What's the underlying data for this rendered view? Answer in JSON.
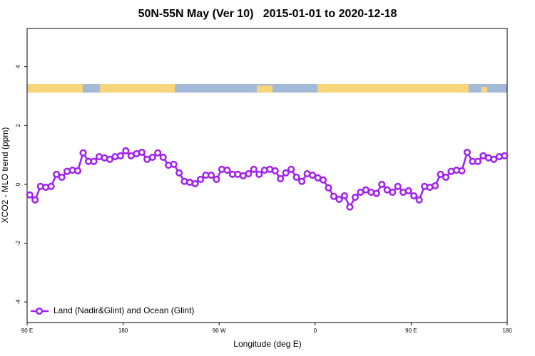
{
  "chart_data": {
    "type": "line",
    "title": "50N-55N May (Ver 10)   2015-01-01 to 2020-12-18",
    "x_label": "Longitude (deg E)",
    "y_label": "XCO2 - MLO trend (ppm)",
    "xlim": [
      90,
      540
    ],
    "ylim": [
      -4.7,
      5.3
    ],
    "xticks": [
      {
        "value": 90,
        "label": "90 E"
      },
      180,
      {
        "value": 270,
        "label": "90 W"
      },
      {
        "value": 360,
        "label": "0"
      },
      {
        "value": 450,
        "label": "90 E"
      },
      {
        "value": 540,
        "label": "180"
      }
    ],
    "yticks": [
      -4,
      -2,
      0,
      2,
      4
    ],
    "legend": "bottom-left",
    "x": [
      92.5,
      97.5,
      102.5,
      107.5,
      112.5,
      117.5,
      122.5,
      127.5,
      132.5,
      137.5,
      142.5,
      147.5,
      152.5,
      157.5,
      162.5,
      167.5,
      172.5,
      177.5,
      182.5,
      187.5,
      192.5,
      197.5,
      202.5,
      207.5,
      212.5,
      217.5,
      222.5,
      227.5,
      232.5,
      237.5,
      242.5,
      247.5,
      252.5,
      257.5,
      262.5,
      267.5,
      272.5,
      277.5,
      282.5,
      287.5,
      292.5,
      297.5,
      302.5,
      307.5,
      312.5,
      317.5,
      322.5,
      327.5,
      332.5,
      337.5,
      342.5,
      347.5,
      352.5,
      357.5,
      362.5,
      367.5,
      372.5,
      377.5,
      382.5,
      387.5,
      392.5,
      397.5,
      402.5,
      407.5,
      412.5,
      417.5,
      422.5,
      427.5,
      432.5,
      437.5,
      442.5,
      447.5,
      452.5,
      457.5,
      462.5,
      467.5,
      472.5,
      477.5,
      482.5,
      487.5,
      492.5,
      497.5,
      502.5,
      507.5,
      512.5,
      517.5,
      522.5,
      527.5,
      532.5,
      537.5
    ],
    "series": [
      {
        "name": "Land (Nadir&Glint) and Ocean (Glint)",
        "color": "#a020f0",
        "values": [
          -0.36,
          -0.53,
          -0.07,
          -0.1,
          -0.07,
          0.34,
          0.24,
          0.44,
          0.48,
          0.46,
          1.07,
          0.78,
          0.78,
          0.94,
          0.9,
          0.85,
          0.94,
          0.97,
          1.14,
          0.97,
          1.04,
          1.09,
          0.85,
          0.92,
          1.07,
          0.92,
          0.65,
          0.68,
          0.39,
          0.1,
          0.07,
          0.02,
          0.17,
          0.31,
          0.31,
          0.17,
          0.51,
          0.48,
          0.34,
          0.34,
          0.29,
          0.36,
          0.51,
          0.34,
          0.48,
          0.51,
          0.46,
          0.19,
          0.39,
          0.51,
          0.24,
          0.1,
          0.36,
          0.31,
          0.22,
          0.15,
          -0.12,
          -0.41,
          -0.51,
          -0.39,
          -0.77,
          -0.44,
          -0.27,
          -0.19,
          -0.27,
          -0.31,
          0.0,
          -0.19,
          -0.27,
          -0.07,
          -0.27,
          -0.22,
          -0.39,
          -0.53,
          -0.07,
          -0.1,
          -0.05,
          0.34,
          0.24,
          0.44,
          0.48,
          0.46,
          1.09,
          0.78,
          0.78,
          0.97,
          0.9,
          0.85,
          0.94,
          0.97
        ]
      }
    ]
  }
}
